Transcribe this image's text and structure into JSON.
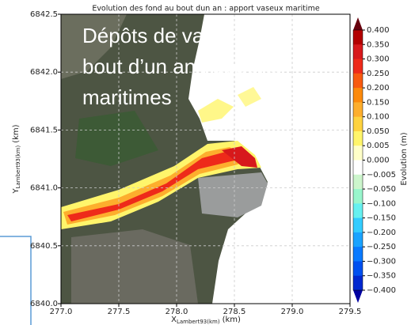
{
  "chart_data": {
    "type": "map",
    "title": "Evolution des fond au bout dun an : apport vaseux maritime",
    "annotation": [
      "Dépôts de vase au",
      "bout d’un an : apports",
      "maritimes"
    ],
    "xlabel": {
      "text": "X",
      "subscript": "Lambert93(km)",
      "unit": "(km)"
    },
    "ylabel": {
      "text": "Y",
      "subscript": "Lambert93(km)",
      "unit": "(km)"
    },
    "xlim": [
      277.0,
      279.5
    ],
    "xticks": [
      {
        "value": 277,
        "label": "277.0"
      },
      {
        "value": 277.5,
        "label": "277.5"
      },
      {
        "value": 278,
        "label": "278.0"
      },
      {
        "value": 278.5,
        "label": "278.5"
      },
      {
        "value": 279,
        "label": "279.0"
      },
      {
        "value": 279.5,
        "label": "279.5"
      }
    ],
    "ylim": [
      6840.0,
      6842.5
    ],
    "yticks": [
      {
        "value": 6840,
        "label": "6840.0"
      },
      {
        "value": 6840.5,
        "label": "6840.5"
      },
      {
        "value": 6841,
        "label": "6841.0"
      },
      {
        "value": 6841.5,
        "label": "6841.5"
      },
      {
        "value": 6842,
        "label": "6842.0"
      },
      {
        "value": 6842.5,
        "label": "6842.5"
      }
    ],
    "grid": true,
    "colorbar": {
      "label": "Evolution (m)",
      "ticks": [
        {
          "value": 0.4,
          "label": "0.400"
        },
        {
          "value": 0.35,
          "label": "0.350"
        },
        {
          "value": 0.3,
          "label": "0.300"
        },
        {
          "value": 0.25,
          "label": "0.250"
        },
        {
          "value": 0.2,
          "label": "0.200"
        },
        {
          "value": 0.15,
          "label": "0.150"
        },
        {
          "value": 0.1,
          "label": "0.100"
        },
        {
          "value": 0.05,
          "label": "0.050"
        },
        {
          "value": 0.005,
          "label": "0.005"
        },
        {
          "value": 0,
          "label": "0.000"
        },
        {
          "value": -0.005,
          "label": "−0.005"
        },
        {
          "value": -0.05,
          "label": "−0.050"
        },
        {
          "value": -0.1,
          "label": "−0.100"
        },
        {
          "value": -0.15,
          "label": "−0.150"
        },
        {
          "value": -0.2,
          "label": "−0.200"
        },
        {
          "value": -0.25,
          "label": "−0.250"
        },
        {
          "value": -0.3,
          "label": "−0.300"
        },
        {
          "value": -0.35,
          "label": "−0.350"
        },
        {
          "value": -0.4,
          "label": "−0.400"
        }
      ],
      "colors": [
        "#b30000",
        "#d7191c",
        "#ee2a1a",
        "#f85a10",
        "#fc8a0c",
        "#fdae2d",
        "#fed23f",
        "#fff56b",
        "#ffffc8",
        "#ffffff",
        "#ccf5cc",
        "#99f5cc",
        "#66f0f0",
        "#33ccff",
        "#1aa3ff",
        "#0a7aff",
        "#0050f0",
        "#0028d0"
      ],
      "extend_colors": [
        "#67000d",
        "#0000a0"
      ]
    }
  }
}
